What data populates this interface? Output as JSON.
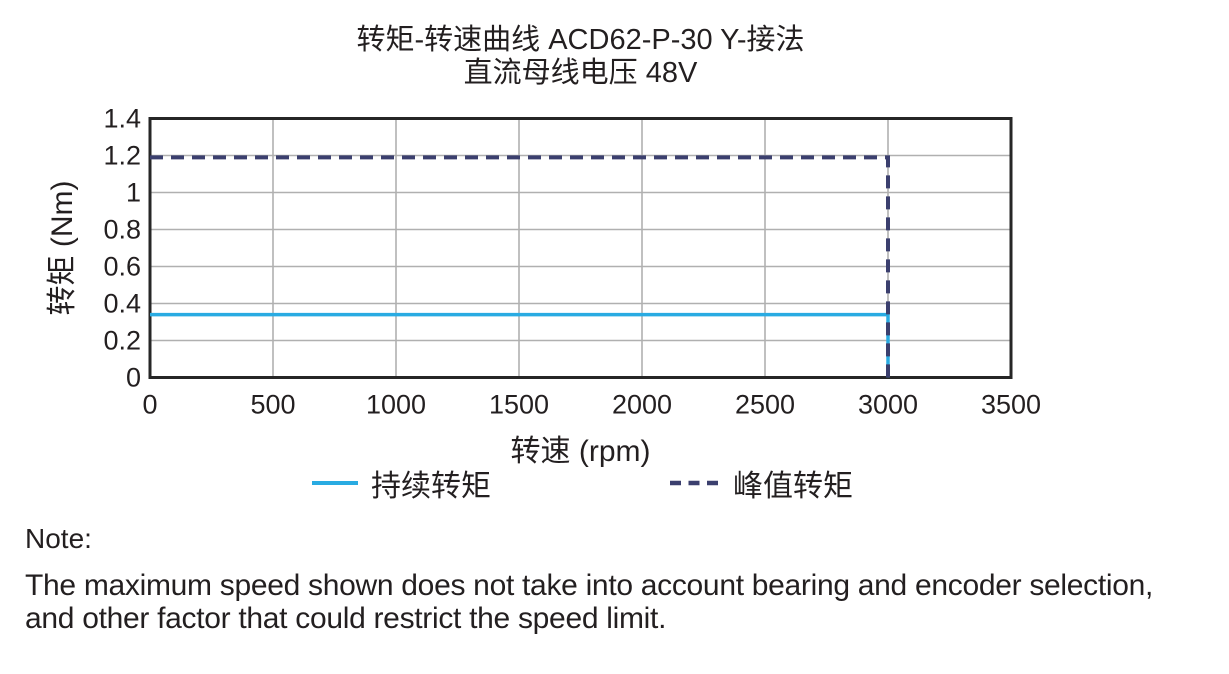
{
  "chart_data": {
    "type": "line",
    "title": "转矩-转速曲线 ACD62-P-30 Y-接法",
    "subtitle": "直流母线电压 48V",
    "xlabel": "转速 (rpm)",
    "ylabel": "转矩 (Nm)",
    "xlim": [
      0,
      3500
    ],
    "ylim": [
      0,
      1.4
    ],
    "xticks": [
      0,
      500,
      1000,
      1500,
      2000,
      2500,
      3000,
      3500
    ],
    "yticks": [
      0,
      0.2,
      0.4,
      0.6,
      0.8,
      1,
      1.2,
      1.4
    ],
    "grid": true,
    "legend_position": "bottom",
    "series": [
      {
        "key": "continuous-torque",
        "name": "持续转矩",
        "line_style": "solid",
        "color": "#29ABE2",
        "points": [
          [
            0,
            0.34
          ],
          [
            3000,
            0.34
          ],
          [
            3000,
            0
          ]
        ]
      },
      {
        "key": "peak-torque",
        "name": "峰值转矩",
        "line_style": "dashed",
        "color": "#3B3F6E",
        "points": [
          [
            0,
            1.19
          ],
          [
            3000,
            1.19
          ],
          [
            3000,
            0
          ]
        ]
      }
    ]
  },
  "note": {
    "label": "Note:",
    "text": "The maximum speed shown does not take into account bearing and encoder selection, and other factor that could restrict the speed limit."
  },
  "colors": {
    "grid": "#B0B0B0",
    "axis_border": "#262626",
    "text": "#231F20"
  }
}
